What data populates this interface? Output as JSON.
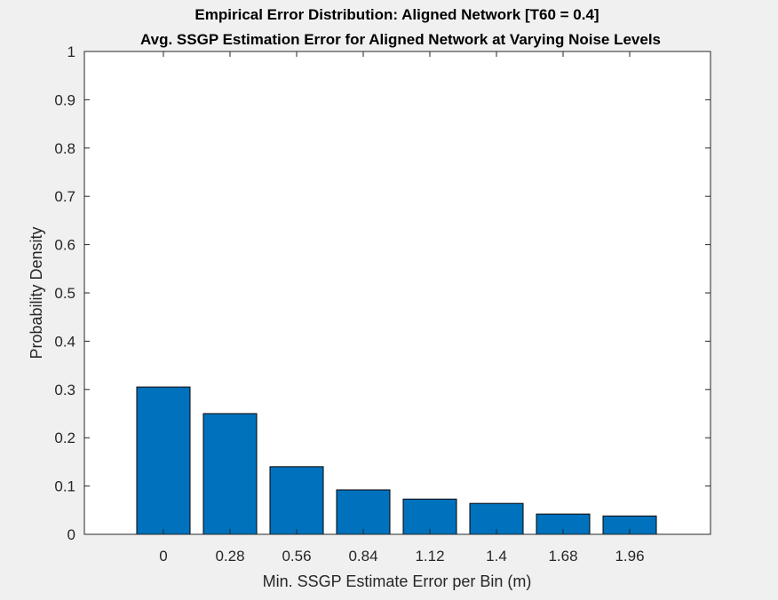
{
  "chart_data": {
    "type": "bar",
    "title": "Empirical Error Distribution: Aligned Network [T60 = 0.4]",
    "subtitle": "Avg. SSGP Estimation Error for Aligned Network at Varying Noise Levels",
    "xlabel": "Min. SSGP Estimate Error per Bin (m)",
    "ylabel": "Probability Density",
    "categories": [
      "0",
      "0.28",
      "0.56",
      "0.84",
      "1.12",
      "1.4",
      "1.68",
      "1.96"
    ],
    "values": [
      0.305,
      0.25,
      0.14,
      0.092,
      0.073,
      0.064,
      0.042,
      0.038
    ],
    "ylim": [
      0,
      1
    ],
    "yticks": [
      "0",
      "0.1",
      "0.2",
      "0.3",
      "0.4",
      "0.5",
      "0.6",
      "0.7",
      "0.8",
      "0.9",
      "1"
    ],
    "grid": false,
    "bar_color": "#0072BD",
    "background_color": "#f0f0f0",
    "axes_color": "#ffffff"
  }
}
